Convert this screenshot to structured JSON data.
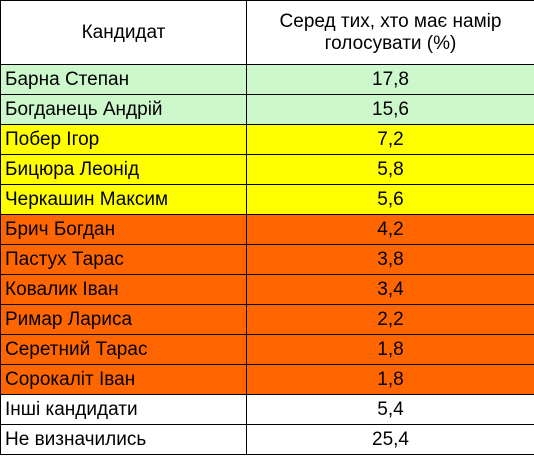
{
  "table": {
    "headers": {
      "candidate": "Кандидат",
      "percent": "Серед тих, хто має намір голосувати (%)"
    },
    "colors": {
      "green": "#ccf8cc",
      "yellow": "#ffff00",
      "orange": "#ff6600",
      "white": "#ffffff"
    },
    "rows": [
      {
        "name": "Барна Степан",
        "value": "17,8",
        "color": "green"
      },
      {
        "name": "Богданець Андрій",
        "value": "15,6",
        "color": "green"
      },
      {
        "name": "Побер Ігор",
        "value": "7,2",
        "color": "yellow"
      },
      {
        "name": "Бицюра Леонід",
        "value": "5,8",
        "color": "yellow"
      },
      {
        "name": "Черкашин Максим",
        "value": "5,6",
        "color": "yellow"
      },
      {
        "name": "Брич Богдан",
        "value": "4,2",
        "color": "orange"
      },
      {
        "name": "Пастух Тарас",
        "value": "3,8",
        "color": "orange"
      },
      {
        "name": "Ковалик Іван",
        "value": "3,4",
        "color": "orange"
      },
      {
        "name": "Римар Лариса",
        "value": "2,2",
        "color": "orange"
      },
      {
        "name": "Серетний Тарас",
        "value": "1,8",
        "color": "orange"
      },
      {
        "name": "Сорокаліт Іван",
        "value": "1,8",
        "color": "orange"
      },
      {
        "name": "Інші кандидати",
        "value": "5,4",
        "color": "white"
      },
      {
        "name": "Не визначились",
        "value": "25,4",
        "color": "white"
      }
    ]
  }
}
